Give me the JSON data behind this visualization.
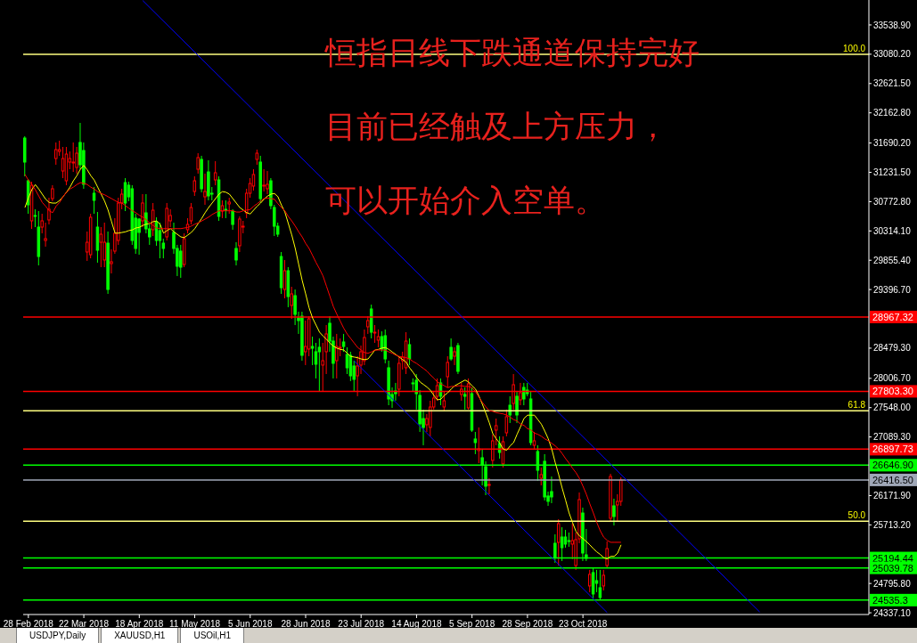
{
  "chart_data": {
    "type": "candlestick",
    "categories": [
      null,
      "28 Feb 2018",
      null,
      null,
      null,
      null,
      null,
      null,
      null,
      null,
      null,
      null,
      null,
      null,
      null,
      null,
      null,
      "22 Mar 2018",
      null,
      null,
      null,
      null,
      null,
      null,
      null,
      null,
      null,
      null,
      null,
      null,
      null,
      null,
      null,
      "18 Apr 2018",
      null,
      null,
      null,
      null,
      null,
      null,
      null,
      null,
      null,
      null,
      null,
      null,
      null,
      null,
      null,
      "11 May 2018",
      null,
      null,
      null,
      null,
      null,
      null,
      null,
      null,
      null,
      null,
      null,
      null,
      null,
      null,
      null,
      "5 Jun 2018",
      null,
      null,
      null,
      null,
      null,
      null,
      null,
      null,
      null,
      null,
      null,
      null,
      null,
      null,
      null,
      "28 Jun 2018",
      null,
      null,
      null,
      null,
      null,
      null,
      null,
      null,
      null,
      null,
      null,
      null,
      null,
      null,
      null,
      "23 Jul 2018",
      null,
      null,
      null,
      null,
      null,
      null,
      null,
      null,
      null,
      null,
      null,
      null,
      null,
      null,
      null,
      "14 Aug 2018",
      null,
      null,
      null,
      null,
      null,
      null,
      null,
      null,
      null,
      null,
      null,
      null,
      null,
      null,
      null,
      "5 Sep 2018",
      null,
      null,
      null,
      null,
      null,
      null,
      null,
      null,
      null,
      null,
      null,
      null,
      null,
      null,
      null,
      "28 Sep 2018",
      null,
      null,
      null,
      null,
      null,
      null,
      null,
      null,
      null,
      null,
      null,
      null,
      null,
      null,
      null,
      "23 Oct 2018",
      null,
      null,
      null,
      null,
      null,
      null,
      null,
      null,
      null,
      null,
      null,
      null,
      null,
      null,
      null,
      null,
      null,
      null,
      null,
      null,
      null,
      null,
      null,
      null,
      null,
      null,
      null,
      null,
      null,
      null,
      null,
      null,
      null,
      null,
      null,
      null,
      null,
      null,
      null,
      null,
      null,
      null,
      null,
      null,
      null,
      null,
      null,
      null,
      null,
      null,
      null,
      null,
      null,
      null,
      null,
      null,
      null,
      null,
      null,
      null,
      null,
      null,
      null,
      null,
      null,
      null,
      null,
      null,
      null,
      null,
      null,
      null,
      null,
      null,
      null,
      null,
      null,
      null,
      null,
      null,
      null,
      null
    ],
    "ohlc": [
      [
        31768,
        31796,
        31169,
        31392
      ],
      [
        31099,
        31127,
        30583,
        30723
      ],
      [
        30472,
        31085,
        30346,
        31030
      ],
      [
        30556,
        30653,
        30374,
        30542
      ],
      [
        30374,
        30625,
        29775,
        29914
      ],
      [
        30374,
        30583,
        30277,
        30472
      ],
      [
        30165,
        30444,
        30068,
        30193
      ],
      [
        30486,
        30834,
        30416,
        30653
      ],
      [
        30820,
        31030,
        30779,
        30974
      ],
      [
        31448,
        31699,
        31350,
        31587
      ],
      [
        31559,
        31727,
        31490,
        31587
      ],
      [
        31252,
        31629,
        31141,
        31448
      ],
      [
        31099,
        31629,
        31030,
        31517
      ],
      [
        31392,
        31559,
        31280,
        31448
      ],
      [
        31378,
        31699,
        31238,
        31392
      ],
      [
        31308,
        31629,
        31211,
        31531
      ],
      [
        31699,
        32005,
        31280,
        31350
      ],
      [
        31573,
        31699,
        30974,
        31044
      ],
      [
        29984,
        30305,
        29845,
        30137
      ],
      [
        29942,
        30583,
        29886,
        30528
      ],
      [
        30904,
        31002,
        30583,
        30793
      ],
      [
        30374,
        30611,
        29817,
        30012
      ],
      [
        30137,
        30374,
        29747,
        30263
      ],
      [
        29859,
        30444,
        29747,
        30137
      ],
      [
        30123,
        30305,
        29329,
        29398
      ],
      [
        29803,
        30026,
        29649,
        29831
      ],
      [
        29998,
        30514,
        29956,
        30277
      ],
      [
        30165,
        30834,
        30096,
        30751
      ],
      [
        30751,
        30974,
        30653,
        30890
      ],
      [
        31071,
        31141,
        30625,
        30751
      ],
      [
        31030,
        31085,
        30779,
        30848
      ],
      [
        30974,
        31030,
        30096,
        30165
      ],
      [
        30514,
        30583,
        29956,
        30040
      ],
      [
        30500,
        30514,
        29942,
        30291
      ],
      [
        30472,
        30890,
        30374,
        30751
      ],
      [
        30597,
        30890,
        30277,
        30346
      ],
      [
        30346,
        30416,
        30096,
        30221
      ],
      [
        30333,
        30751,
        30235,
        30639
      ],
      [
        30458,
        30528,
        30082,
        30165
      ],
      [
        30319,
        30444,
        29886,
        30165
      ],
      [
        30123,
        30193,
        29886,
        30040
      ],
      [
        30221,
        30751,
        30165,
        30667
      ],
      [
        30472,
        30653,
        30374,
        30556
      ],
      [
        30291,
        30444,
        29956,
        30040
      ],
      [
        30040,
        30096,
        29608,
        29761
      ],
      [
        29998,
        30096,
        29580,
        29747
      ],
      [
        29789,
        30277,
        29747,
        30193
      ],
      [
        30333,
        30514,
        30277,
        30416
      ],
      [
        30472,
        30751,
        30416,
        30681
      ],
      [
        30932,
        31169,
        30862,
        31099
      ],
      [
        31280,
        31531,
        31211,
        31462
      ],
      [
        31434,
        31490,
        30918,
        30974
      ],
      [
        30848,
        31211,
        30723,
        30932
      ],
      [
        31238,
        31420,
        30793,
        30862
      ],
      [
        30904,
        31002,
        30793,
        30890
      ],
      [
        31113,
        31406,
        31030,
        31225
      ],
      [
        31113,
        31169,
        30472,
        30542
      ],
      [
        30625,
        30793,
        30514,
        30709
      ],
      [
        30653,
        30793,
        30514,
        30639
      ],
      [
        30737,
        30834,
        30583,
        30765
      ],
      [
        30625,
        30653,
        30333,
        30416
      ],
      [
        30040,
        30137,
        29775,
        29859
      ],
      [
        30082,
        30542,
        29984,
        30500
      ],
      [
        30374,
        30472,
        30277,
        30388
      ],
      [
        30597,
        30974,
        30514,
        30904
      ],
      [
        30904,
        31141,
        30834,
        31057
      ],
      [
        31016,
        31280,
        30946,
        31197
      ],
      [
        31434,
        31587,
        31350,
        31531
      ],
      [
        31392,
        31490,
        30751,
        30820
      ],
      [
        31016,
        31280,
        30932,
        31030
      ],
      [
        30974,
        31252,
        30890,
        31044
      ],
      [
        31099,
        31141,
        30653,
        30709
      ],
      [
        30681,
        30723,
        30235,
        30388
      ],
      [
        30388,
        30444,
        30221,
        30263
      ],
      [
        29914,
        29984,
        29329,
        29426
      ],
      [
        29398,
        29859,
        29259,
        29691
      ],
      [
        29691,
        29747,
        29120,
        29287
      ],
      [
        29148,
        29440,
        28938,
        29329
      ],
      [
        29301,
        29398,
        28841,
        29008
      ],
      [
        28952,
        29050,
        28702,
        28911
      ],
      [
        28980,
        29050,
        28283,
        28367
      ],
      [
        28423,
        28911,
        28214,
        28506
      ],
      [
        28465,
        28980,
        28353,
        28938
      ],
      [
        28506,
        28660,
        28214,
        28478
      ],
      [
        28423,
        28562,
        28005,
        28228
      ],
      [
        28493,
        28632,
        27795,
        28423
      ],
      [
        28214,
        28562,
        27795,
        28283
      ],
      [
        28423,
        28841,
        28074,
        28702
      ],
      [
        28869,
        28980,
        28423,
        28590
      ],
      [
        28590,
        28660,
        28005,
        28242
      ],
      [
        28283,
        28702,
        28005,
        28506
      ],
      [
        28478,
        28632,
        28353,
        28492
      ],
      [
        28576,
        28702,
        28423,
        28506
      ],
      [
        28381,
        28492,
        28074,
        28172
      ],
      [
        28367,
        28423,
        27963,
        28046
      ],
      [
        28200,
        28283,
        27795,
        27991
      ],
      [
        28046,
        28353,
        27726,
        28200
      ],
      [
        28214,
        28520,
        28074,
        28423
      ],
      [
        28283,
        28771,
        28214,
        28646
      ],
      [
        28813,
        28980,
        28702,
        28911
      ],
      [
        29092,
        29161,
        28632,
        28729
      ],
      [
        28715,
        28841,
        28562,
        28729
      ],
      [
        28604,
        28771,
        28492,
        28660
      ],
      [
        28660,
        28743,
        28423,
        28465
      ],
      [
        28674,
        28771,
        28242,
        28311
      ],
      [
        28172,
        28283,
        27586,
        27684
      ],
      [
        27754,
        27865,
        27544,
        27656
      ],
      [
        27809,
        27935,
        27656,
        27767
      ],
      [
        27837,
        28353,
        27726,
        28242
      ],
      [
        28283,
        28423,
        28144,
        28339
      ],
      [
        28172,
        28729,
        28074,
        28590
      ],
      [
        28534,
        28632,
        28214,
        28311
      ],
      [
        27935,
        28005,
        27795,
        27921
      ],
      [
        27977,
        28074,
        27517,
        27767
      ],
      [
        27740,
        27823,
        27168,
        27294
      ],
      [
        27377,
        27517,
        26959,
        27238
      ],
      [
        27280,
        27447,
        27168,
        27377
      ],
      [
        27238,
        27656,
        27098,
        27558
      ],
      [
        27558,
        27795,
        27517,
        27698
      ],
      [
        27726,
        28005,
        27656,
        27893
      ],
      [
        27935,
        28005,
        27586,
        27726
      ],
      [
        27558,
        27795,
        27489,
        27656
      ],
      [
        28032,
        28353,
        27865,
        28256
      ],
      [
        28492,
        28632,
        28283,
        28311
      ],
      [
        28353,
        28492,
        28214,
        28423
      ],
      [
        28520,
        28562,
        28074,
        28116
      ],
      [
        27754,
        27935,
        27656,
        27837
      ],
      [
        27754,
        27865,
        27517,
        27726
      ],
      [
        27544,
        28005,
        27517,
        27921
      ],
      [
        27767,
        27865,
        27168,
        27196
      ],
      [
        27057,
        27168,
        26820,
        27001
      ],
      [
        26876,
        27238,
        26680,
        26903
      ],
      [
        26764,
        26889,
        26332,
        26653
      ],
      [
        26625,
        26708,
        26178,
        26318
      ],
      [
        26332,
        26443,
        26192,
        26346
      ],
      [
        26722,
        27126,
        26611,
        27029
      ],
      [
        27196,
        27377,
        26959,
        27266
      ],
      [
        26987,
        27098,
        26750,
        26847
      ],
      [
        26667,
        27098,
        26611,
        27015
      ],
      [
        27154,
        27517,
        27098,
        27405
      ],
      [
        27586,
        27726,
        27308,
        27433
      ],
      [
        27614,
        28074,
        27517,
        27907
      ],
      [
        27726,
        27795,
        27308,
        27433
      ],
      [
        27670,
        27935,
        27586,
        27782
      ],
      [
        27865,
        27935,
        27586,
        27684
      ],
      [
        27823,
        27935,
        27726,
        27767
      ],
      [
        27684,
        27795,
        26959,
        27001
      ],
      [
        26959,
        27168,
        26889,
        27029
      ],
      [
        26861,
        26959,
        26401,
        26568
      ],
      [
        26443,
        26611,
        26332,
        26500
      ],
      [
        26708,
        26820,
        26095,
        26150
      ],
      [
        26165,
        26234,
        26011,
        26081
      ],
      [
        26234,
        26471,
        26053,
        26150
      ],
      [
        25425,
        25565,
        25119,
        25202
      ],
      [
        25439,
        25802,
        25077,
        25732
      ],
      [
        25523,
        25676,
        25147,
        25356
      ],
      [
        25523,
        25635,
        25356,
        25412
      ],
      [
        25467,
        25593,
        25370,
        25453
      ],
      [
        25412,
        25732,
        25175,
        25467
      ],
      [
        25077,
        25593,
        25008,
        25482
      ],
      [
        25495,
        26220,
        25425,
        26109
      ],
      [
        25899,
        25983,
        25147,
        25272
      ],
      [
        25244,
        25649,
        25147,
        25189
      ],
      [
        24757,
        25008,
        24659,
        24938
      ],
      [
        24966,
        25035,
        24561,
        24631
      ],
      [
        24840,
        25008,
        24659,
        24798
      ],
      [
        24729,
        25008,
        24547,
        24575
      ],
      [
        24757,
        25008,
        24687,
        24924
      ],
      [
        25077,
        25453,
        25035,
        25342
      ],
      [
        25816,
        26513,
        25774,
        26471
      ],
      [
        26011,
        26123,
        25704,
        25844
      ],
      [
        26025,
        26192,
        25774,
        26081
      ],
      [
        26081,
        26457,
        26011,
        26416.5
      ],
      null,
      null,
      null,
      null,
      null,
      null,
      null,
      null,
      null,
      null,
      null,
      null,
      null,
      null,
      null,
      null,
      null,
      null,
      null,
      null,
      null,
      null,
      null,
      null,
      null,
      null,
      null,
      null,
      null,
      null,
      null,
      null,
      null,
      null,
      null,
      null,
      null,
      null,
      null,
      null,
      null,
      null,
      null,
      null,
      null,
      null,
      null,
      null,
      null,
      null,
      null,
      null,
      null,
      null,
      null,
      null,
      null,
      null,
      null,
      null,
      null,
      null,
      null,
      null,
      null,
      null,
      null,
      null,
      null,
      null,
      null
    ],
    "series": [
      {
        "type": "line",
        "color": "#ffff00",
        "values": [
          30680,
          30830,
          30960,
          31040,
          30970,
          30890,
          30810,
          30760,
          30750,
          30750,
          30790,
          30850,
          30920,
          31000,
          31100,
          31180,
          31280,
          31340,
          31270,
          31180,
          31110,
          31000,
          30890,
          30780,
          30640,
          30460,
          30280,
          30280,
          30290,
          30300,
          30320,
          30330,
          30360,
          30370,
          30400,
          30420,
          30430,
          30460,
          30470,
          30420,
          30280,
          30320,
          30350,
          30300,
          30260,
          30220,
          30210,
          30250,
          30290,
          30350,
          30430,
          30510,
          30600,
          30680,
          30750,
          30820,
          30890,
          30930,
          30920,
          30890,
          30820,
          30750,
          30680,
          30640,
          30600,
          30580,
          30640,
          30700,
          30750,
          30810,
          30860,
          30890,
          30900,
          30850,
          30720,
          30610,
          30430,
          30250,
          30040,
          29790,
          29540,
          29330,
          29110,
          28950,
          28840,
          28730,
          28670,
          28620,
          28560,
          28510,
          28480,
          28460,
          28450,
          28400,
          28350,
          28340,
          28330,
          28310,
          28300,
          28310,
          28380,
          28450,
          28460,
          28480,
          28490,
          28460,
          28420,
          28380,
          28340,
          28300,
          28260,
          28170,
          28100,
          28020,
          27950,
          27910,
          27870,
          27820,
          27740,
          27670,
          27680,
          27740,
          27780,
          27840,
          27890,
          27920,
          27950,
          27980,
          27950,
          27890,
          27840,
          27730,
          27600,
          27460,
          27310,
          27140,
          27060,
          26990,
          26900,
          26880,
          26950,
          27000,
          27130,
          27250,
          27380,
          27430,
          27430,
          27430,
          27360,
          27290,
          27180,
          27060,
          26900,
          26690,
          26500,
          26290,
          26100,
          25900,
          25750,
          25610,
          25540,
          25500,
          25450,
          25400,
          25340,
          25290,
          25250,
          25200,
          25180,
          25220,
          25220,
          25270,
          25400,
          null,
          null,
          null,
          null,
          null,
          null,
          null,
          null,
          null,
          null,
          null,
          null,
          null,
          null,
          null,
          null,
          null,
          null,
          null,
          null,
          null,
          null,
          null,
          null,
          null,
          null,
          null,
          null,
          null,
          null,
          null,
          null,
          null,
          null,
          null,
          null,
          null,
          null,
          null,
          null,
          null,
          null,
          null,
          null,
          null,
          null,
          null,
          null,
          null,
          null,
          null,
          null,
          null,
          null,
          null,
          null,
          null,
          null,
          null,
          null,
          null,
          null,
          null,
          null,
          null,
          null,
          null,
          null,
          null,
          null,
          null
        ]
      },
      {
        "type": "line",
        "color": "#ff0000",
        "values": [
          31200,
          31110,
          31040,
          30960,
          30860,
          30760,
          30700,
          30630,
          30600,
          30700,
          30760,
          30850,
          30920,
          30970,
          31000,
          31040,
          31070,
          31060,
          31040,
          31000,
          30970,
          30930,
          30900,
          30880,
          30850,
          30820,
          30790,
          30760,
          30750,
          30710,
          30670,
          30630,
          30600,
          30560,
          30530,
          30490,
          30440,
          30400,
          30360,
          30350,
          30350,
          30350,
          30350,
          30350,
          30350,
          30350,
          30360,
          30370,
          30390,
          30420,
          30440,
          30470,
          30500,
          30530,
          30570,
          30600,
          30630,
          30630,
          30630,
          30630,
          30630,
          30610,
          30610,
          30630,
          30640,
          30650,
          30700,
          30740,
          30780,
          30820,
          30830,
          30820,
          30810,
          30740,
          30680,
          30630,
          30540,
          30470,
          30390,
          30300,
          30220,
          30120,
          30040,
          29930,
          29820,
          29720,
          29610,
          29450,
          29290,
          29130,
          29010,
          28900,
          28790,
          28700,
          28630,
          28560,
          28490,
          28450,
          28410,
          28400,
          28420,
          28450,
          28450,
          28450,
          28450,
          28420,
          28400,
          28370,
          28350,
          28340,
          28330,
          28310,
          28270,
          28240,
          28200,
          28160,
          28120,
          28060,
          28010,
          27950,
          27920,
          27890,
          27860,
          27880,
          27880,
          27890,
          27890,
          27880,
          27880,
          27860,
          27800,
          27710,
          27630,
          27560,
          27500,
          27490,
          27470,
          27460,
          27450,
          27430,
          27400,
          27360,
          27340,
          27290,
          27270,
          27220,
          27200,
          27150,
          27130,
          27100,
          27060,
          27030,
          26990,
          26950,
          26900,
          26830,
          26750,
          26680,
          26600,
          26530,
          26440,
          26320,
          26190,
          26040,
          25900,
          25750,
          25620,
          25520,
          25470,
          25440,
          25440,
          25440,
          25440,
          null,
          null,
          null,
          null,
          null,
          null,
          null,
          null,
          null,
          null,
          null,
          null,
          null,
          null,
          null,
          null,
          null,
          null,
          null,
          null,
          null,
          null,
          null,
          null,
          null,
          null,
          null,
          null,
          null,
          null,
          null,
          null,
          null,
          null,
          null,
          null,
          null,
          null,
          null,
          null,
          null,
          null,
          null,
          null,
          null,
          null,
          null,
          null,
          null,
          null,
          null,
          null,
          null,
          null,
          null,
          null,
          null,
          null,
          null,
          null,
          null,
          null,
          null,
          null,
          null,
          null,
          null,
          null,
          null,
          null,
          null
        ]
      },
      {
        "type": "line",
        "color": "#0000ff",
        "values": [
          null,
          null,
          null,
          null,
          null,
          null,
          null,
          null,
          null,
          null,
          null,
          null,
          null,
          null,
          null,
          null,
          null,
          null,
          null,
          null,
          null,
          null,
          null,
          null,
          null,
          null,
          null,
          null,
          null,
          null,
          null,
          null,
          null,
          null,
          33920,
          null,
          null,
          null,
          null,
          null,
          null,
          null,
          null,
          null,
          null,
          null,
          null,
          null,
          null,
          null,
          null,
          null,
          null,
          null,
          null,
          null,
          null,
          null,
          null,
          null,
          null,
          null,
          null,
          null,
          null,
          null,
          null,
          null,
          null,
          null,
          null,
          null,
          null,
          null,
          null,
          null,
          null,
          null,
          null,
          null,
          null,
          null,
          null,
          null,
          null,
          null,
          null,
          null,
          null,
          null,
          null,
          null,
          null,
          null,
          null,
          null,
          null,
          null,
          null,
          null,
          null,
          null,
          null,
          null,
          null,
          null,
          null,
          null,
          null,
          null,
          null,
          null,
          null,
          null,
          null,
          null,
          null,
          null,
          null,
          null,
          null,
          null,
          null,
          null,
          null,
          null,
          null,
          null,
          null,
          null,
          null,
          null,
          null,
          null,
          null,
          null,
          null,
          null,
          null,
          null,
          null,
          null,
          null,
          null,
          null,
          null,
          null,
          null,
          null,
          null,
          null,
          null,
          null,
          null,
          null,
          null,
          null,
          null,
          null,
          null,
          null,
          null,
          null,
          null,
          null,
          null,
          null,
          null,
          null,
          null,
          null,
          null,
          null,
          null,
          null,
          null,
          null,
          null,
          null,
          null,
          null,
          null,
          null,
          null,
          null,
          null,
          null,
          null,
          null,
          null,
          null,
          null,
          null,
          null,
          null,
          null,
          null,
          null,
          null,
          null,
          null,
          null,
          null,
          null,
          null,
          null,
          null,
          null,
          null,
          null,
          null,
          null,
          24350,
          null,
          null,
          null,
          null,
          null,
          null,
          null,
          null,
          null,
          null,
          null,
          null,
          null,
          null,
          null,
          null,
          null,
          null,
          null,
          null,
          null,
          null,
          null,
          null,
          null,
          null,
          null,
          null,
          null,
          null,
          null
        ]
      },
      {
        "type": "line",
        "color": "#0000ff",
        "values": [
          null,
          null,
          null,
          null,
          null,
          null,
          null,
          null,
          null,
          null,
          null,
          null,
          null,
          null,
          null,
          null,
          null,
          null,
          null,
          null,
          null,
          null,
          null,
          null,
          null,
          null,
          null,
          null,
          null,
          null,
          null,
          null,
          null,
          null,
          null,
          null,
          null,
          null,
          null,
          null,
          null,
          null,
          null,
          null,
          null,
          null,
          null,
          null,
          null,
          null,
          null,
          null,
          null,
          null,
          null,
          null,
          null,
          null,
          null,
          null,
          null,
          null,
          null,
          null,
          null,
          null,
          null,
          null,
          null,
          null,
          null,
          null,
          null,
          null,
          null,
          null,
          null,
          null,
          null,
          null,
          null,
          null,
          null,
          null,
          null,
          null,
          null,
          null,
          null,
          null,
          null,
          null,
          null,
          null,
          null,
          28280,
          null,
          null,
          null,
          null,
          null,
          null,
          null,
          null,
          null,
          null,
          null,
          null,
          null,
          null,
          null,
          null,
          null,
          null,
          null,
          null,
          null,
          null,
          null,
          null,
          null,
          null,
          null,
          null,
          null,
          null,
          null,
          null,
          null,
          null,
          null,
          null,
          null,
          null,
          null,
          null,
          null,
          null,
          null,
          null,
          null,
          null,
          null,
          null,
          null,
          null,
          null,
          null,
          null,
          null,
          null,
          null,
          null,
          null,
          null,
          null,
          null,
          null,
          null,
          null,
          null,
          null,
          null,
          null,
          null,
          null,
          null,
          null,
          24340,
          null,
          null,
          null,
          null,
          null,
          null,
          null,
          null,
          null,
          null,
          null,
          null,
          null,
          null,
          null,
          null,
          null,
          null,
          null,
          null,
          null,
          null,
          null,
          null,
          null,
          null,
          null,
          null,
          null,
          null,
          null,
          null,
          null,
          null,
          null,
          null,
          null,
          null,
          null,
          null,
          null,
          null,
          null,
          null,
          null,
          null,
          null,
          null,
          null,
          null,
          null,
          null,
          null,
          null,
          null,
          null,
          null,
          null,
          null,
          null,
          null,
          null,
          null,
          null,
          null,
          null,
          null,
          null,
          null,
          null,
          null,
          null,
          null,
          null,
          null
        ]
      }
    ],
    "ylim": [
      24310,
      33929
    ],
    "yticks": [
      {
        "value": 33538.9,
        "label": "33538.90"
      },
      {
        "value": 33080.2,
        "label": "33080.20"
      },
      {
        "value": 32621.5,
        "label": "32621.50"
      },
      {
        "value": 32162.8,
        "label": "32162.80"
      },
      {
        "value": 31690.2,
        "label": "31690.20"
      },
      {
        "value": 31231.5,
        "label": "31231.50"
      },
      {
        "value": 30772.8,
        "label": "30772.80"
      },
      {
        "value": 30314.1,
        "label": "30314.10"
      },
      {
        "value": 29855.4,
        "label": "29855.40"
      },
      {
        "value": 29396.7,
        "label": "29396.70"
      },
      {
        "value": 28479.3,
        "label": "28479.30"
      },
      {
        "value": 28006.7,
        "label": "28006.70"
      },
      {
        "value": 27548,
        "label": "27548.00"
      },
      {
        "value": 27089.3,
        "label": "27089.30"
      },
      {
        "value": 26171.9,
        "label": "26171.90"
      },
      {
        "value": 25713.2,
        "label": "25713.20"
      },
      {
        "value": 24795.8,
        "label": "24795.80"
      },
      {
        "value": 24337.1,
        "label": "24337.10"
      }
    ],
    "ref_lines": [
      {
        "axis": "y",
        "value": 33080,
        "color": "#ffff80"
      },
      {
        "axis": "y",
        "value": 27500,
        "color": "#ffff80"
      },
      {
        "axis": "y",
        "value": 25770,
        "color": "#ffff80"
      },
      {
        "axis": "y",
        "value": 28967.32,
        "label": "28967.32",
        "color": "#ff0000"
      },
      {
        "axis": "y",
        "value": 27803.3,
        "label": "27803.30",
        "color": "#ff0000"
      },
      {
        "axis": "y",
        "value": 26897.73,
        "label": "26897.73",
        "color": "#ff0000"
      },
      {
        "axis": "y",
        "value": 26646.9,
        "label": "26646.90",
        "color": "#00ff00"
      },
      {
        "axis": "y",
        "value": 26416.5,
        "label": "26416.50",
        "color": "#a0a8b8"
      },
      {
        "axis": "y",
        "value": 25194.44,
        "label": "25194.44",
        "color": "#00ff00"
      },
      {
        "axis": "y",
        "value": 25039.78,
        "label": "25039.78",
        "color": "#00ff00"
      },
      {
        "axis": "y",
        "value": 24535.3,
        "label": "24535.3",
        "color": "#00ff00"
      }
    ],
    "annotations": [
      "恒指日线下跌通道保持完好",
      "目前已经触及上方压力，",
      "可以开始介入空单。",
      "USDJPY,Daily",
      "XAUUSD,H1",
      "USOil,H1",
      {
        "text": "100.0",
        "y": 33080
      },
      {
        "text": "61.8",
        "y": 27500
      },
      {
        "text": "50.0",
        "y": 25770
      }
    ]
  }
}
